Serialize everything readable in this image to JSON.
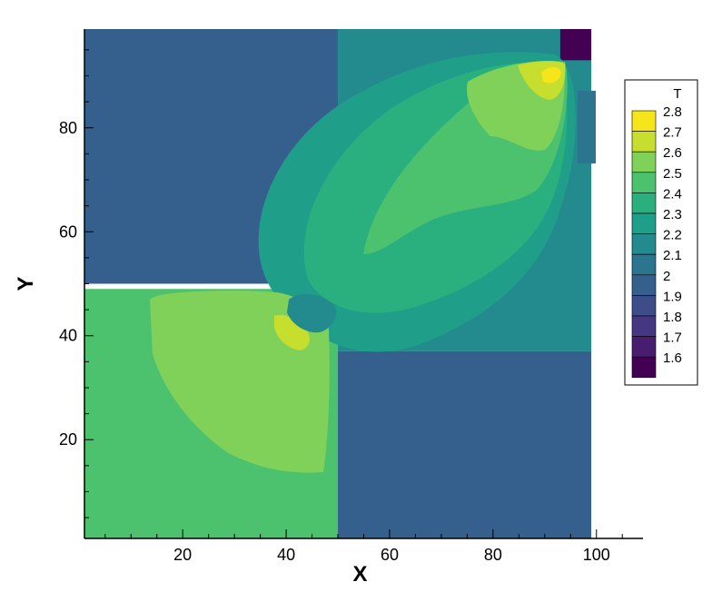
{
  "chart_data": {
    "type": "heatmap",
    "variable": "T",
    "xlabel": "X",
    "ylabel": "Y",
    "xlim": [
      1,
      109
    ],
    "ylim": [
      1,
      99
    ],
    "x_ticks": [
      20,
      40,
      60,
      80,
      100
    ],
    "y_ticks": [
      20,
      40,
      60,
      80
    ],
    "grid": false,
    "legend": {
      "title": "T",
      "placement": "right",
      "levels": [
        {
          "value": 2.8,
          "label": "2.8",
          "color": "#f7e51b"
        },
        {
          "value": 2.7,
          "label": "2.7",
          "color": "#c6df2e"
        },
        {
          "value": 2.6,
          "label": "2.6",
          "color": "#7fd159"
        },
        {
          "value": 2.5,
          "label": "2.5",
          "color": "#4cc16e"
        },
        {
          "value": 2.4,
          "label": "2.4",
          "color": "#2ab07f"
        },
        {
          "value": 2.3,
          "label": "2.3",
          "color": "#1f9e89"
        },
        {
          "value": 2.2,
          "label": "2.2",
          "color": "#238a8d"
        },
        {
          "value": 2.1,
          "label": "2.1",
          "color": "#2b768e"
        },
        {
          "value": 2.0,
          "label": "2",
          "color": "#35608d"
        },
        {
          "value": 1.9,
          "label": "1.9",
          "color": "#3d4d8a"
        },
        {
          "value": 1.8,
          "label": "1.8",
          "color": "#453781"
        },
        {
          "value": 1.7,
          "label": "1.7",
          "color": "#481d6f"
        },
        {
          "value": 1.6,
          "label": "1.6",
          "color": "#440154"
        }
      ]
    },
    "regions": [
      {
        "name": "upper-left-quadrant",
        "T": 2.0,
        "x": [
          1,
          50
        ],
        "y": [
          50,
          99
        ]
      },
      {
        "name": "lower-right-quadrant",
        "T": 2.0,
        "x": [
          50,
          99
        ],
        "y": [
          1,
          37
        ]
      },
      {
        "name": "upper-right-quadrant",
        "T": 2.2,
        "x": [
          50,
          99
        ],
        "y": [
          37,
          99
        ]
      },
      {
        "name": "lower-left-quadrant",
        "T": 2.5,
        "x": [
          1,
          50
        ],
        "y": [
          1,
          49
        ]
      },
      {
        "name": "top-right-corner",
        "T": 1.6,
        "x": [
          93,
          99
        ],
        "y": [
          93,
          99
        ]
      }
    ]
  }
}
